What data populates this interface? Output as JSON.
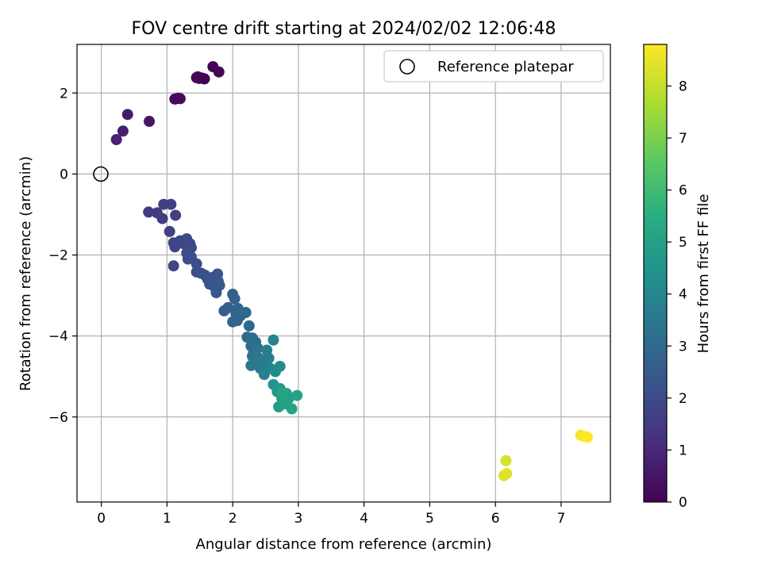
{
  "chart_data": {
    "type": "scatter",
    "title": "FOV centre drift starting at 2024/02/02 12:06:48",
    "xlabel": "Angular distance from reference (arcmin)",
    "ylabel": "Rotation from reference (arcmin)",
    "xlim": [
      -0.37,
      7.75
    ],
    "ylim": [
      -8.1,
      3.2
    ],
    "xticks": [
      0,
      1,
      2,
      3,
      4,
      5,
      6,
      7
    ],
    "yticks": [
      -6,
      -4,
      -2,
      0,
      2
    ],
    "grid": true,
    "legend": {
      "placement": "top-right",
      "entries": [
        "Reference platepar"
      ]
    },
    "reference_point": {
      "x": 0,
      "y": 0,
      "label": "Reference platepar"
    },
    "colorbar": {
      "label": "Hours from first FF file",
      "colormap": "viridis",
      "range": [
        0,
        8.8
      ],
      "ticks": [
        0,
        1,
        2,
        3,
        4,
        5,
        6,
        7,
        8
      ]
    },
    "points": [
      {
        "x": 1.49,
        "y": 2.36,
        "c": 0.05
      },
      {
        "x": 1.53,
        "y": 2.37,
        "c": 0.06
      },
      {
        "x": 1.57,
        "y": 2.35,
        "c": 0.06
      },
      {
        "x": 1.45,
        "y": 2.38,
        "c": 0.05
      },
      {
        "x": 1.7,
        "y": 2.65,
        "c": 0.08
      },
      {
        "x": 1.79,
        "y": 2.52,
        "c": 0.1
      },
      {
        "x": 1.47,
        "y": 2.4,
        "c": 0.07
      },
      {
        "x": 1.12,
        "y": 1.85,
        "c": 0.22
      },
      {
        "x": 1.17,
        "y": 1.87,
        "c": 0.23
      },
      {
        "x": 1.2,
        "y": 1.86,
        "c": 0.24
      },
      {
        "x": 0.73,
        "y": 1.3,
        "c": 0.55
      },
      {
        "x": 0.4,
        "y": 1.47,
        "c": 0.65
      },
      {
        "x": 0.33,
        "y": 1.06,
        "c": 0.75
      },
      {
        "x": 0.23,
        "y": 0.85,
        "c": 0.85
      },
      {
        "x": 0.72,
        "y": -0.94,
        "c": 1.55
      },
      {
        "x": 0.85,
        "y": -0.96,
        "c": 1.6
      },
      {
        "x": 0.93,
        "y": -1.1,
        "c": 1.62
      },
      {
        "x": 0.95,
        "y": -0.75,
        "c": 1.65
      },
      {
        "x": 1.06,
        "y": -0.75,
        "c": 1.67
      },
      {
        "x": 1.13,
        "y": -1.02,
        "c": 1.7
      },
      {
        "x": 1.04,
        "y": -1.42,
        "c": 1.75
      },
      {
        "x": 1.1,
        "y": -1.7,
        "c": 1.8
      },
      {
        "x": 1.12,
        "y": -1.8,
        "c": 1.82
      },
      {
        "x": 1.1,
        "y": -2.27,
        "c": 1.85
      },
      {
        "x": 1.2,
        "y": -1.65,
        "c": 1.9
      },
      {
        "x": 1.25,
        "y": -1.72,
        "c": 1.92
      },
      {
        "x": 1.3,
        "y": -1.6,
        "c": 1.95
      },
      {
        "x": 1.35,
        "y": -1.72,
        "c": 1.98
      },
      {
        "x": 1.37,
        "y": -1.82,
        "c": 2.0
      },
      {
        "x": 1.3,
        "y": -1.95,
        "c": 2.02
      },
      {
        "x": 1.32,
        "y": -2.1,
        "c": 2.05
      },
      {
        "x": 1.37,
        "y": -2.05,
        "c": 2.08
      },
      {
        "x": 1.45,
        "y": -2.22,
        "c": 2.1
      },
      {
        "x": 1.45,
        "y": -2.42,
        "c": 2.12
      },
      {
        "x": 1.52,
        "y": -2.45,
        "c": 2.15
      },
      {
        "x": 1.58,
        "y": -2.5,
        "c": 2.2
      },
      {
        "x": 1.62,
        "y": -2.6,
        "c": 2.25
      },
      {
        "x": 1.65,
        "y": -2.72,
        "c": 2.28
      },
      {
        "x": 1.7,
        "y": -2.55,
        "c": 2.3
      },
      {
        "x": 1.77,
        "y": -2.47,
        "c": 2.32
      },
      {
        "x": 1.78,
        "y": -2.65,
        "c": 2.35
      },
      {
        "x": 1.73,
        "y": -2.8,
        "c": 2.38
      },
      {
        "x": 1.8,
        "y": -2.75,
        "c": 2.4
      },
      {
        "x": 1.75,
        "y": -2.93,
        "c": 2.42
      },
      {
        "x": 1.87,
        "y": -3.38,
        "c": 2.6
      },
      {
        "x": 1.93,
        "y": -3.3,
        "c": 2.65
      },
      {
        "x": 2.0,
        "y": -2.97,
        "c": 2.7
      },
      {
        "x": 2.03,
        "y": -3.08,
        "c": 2.75
      },
      {
        "x": 2.05,
        "y": -3.45,
        "c": 2.8
      },
      {
        "x": 2.0,
        "y": -3.65,
        "c": 2.85
      },
      {
        "x": 2.08,
        "y": -3.32,
        "c": 2.9
      },
      {
        "x": 2.12,
        "y": -3.5,
        "c": 2.95
      },
      {
        "x": 2.07,
        "y": -3.62,
        "c": 2.97
      },
      {
        "x": 2.2,
        "y": -3.42,
        "c": 3.0
      },
      {
        "x": 2.25,
        "y": -3.75,
        "c": 3.05
      },
      {
        "x": 2.22,
        "y": -4.03,
        "c": 3.1
      },
      {
        "x": 2.3,
        "y": -4.05,
        "c": 3.15
      },
      {
        "x": 2.28,
        "y": -4.25,
        "c": 3.2
      },
      {
        "x": 2.35,
        "y": -4.15,
        "c": 3.25
      },
      {
        "x": 2.32,
        "y": -4.4,
        "c": 3.3
      },
      {
        "x": 2.38,
        "y": -4.3,
        "c": 3.35
      },
      {
        "x": 2.4,
        "y": -4.55,
        "c": 3.4
      },
      {
        "x": 2.3,
        "y": -4.5,
        "c": 3.45
      },
      {
        "x": 2.28,
        "y": -4.73,
        "c": 3.5
      },
      {
        "x": 2.37,
        "y": -4.65,
        "c": 3.55
      },
      {
        "x": 2.42,
        "y": -4.8,
        "c": 3.6
      },
      {
        "x": 2.45,
        "y": -4.6,
        "c": 3.65
      },
      {
        "x": 2.5,
        "y": -4.7,
        "c": 3.7
      },
      {
        "x": 2.55,
        "y": -4.55,
        "c": 3.75
      },
      {
        "x": 2.52,
        "y": -4.35,
        "c": 3.8
      },
      {
        "x": 2.48,
        "y": -4.95,
        "c": 3.85
      },
      {
        "x": 2.57,
        "y": -4.8,
        "c": 3.9
      },
      {
        "x": 2.62,
        "y": -4.1,
        "c": 3.95
      },
      {
        "x": 2.65,
        "y": -4.88,
        "c": 4.2
      },
      {
        "x": 2.72,
        "y": -4.75,
        "c": 4.3
      },
      {
        "x": 2.62,
        "y": -5.2,
        "c": 4.6
      },
      {
        "x": 2.68,
        "y": -5.38,
        "c": 4.7
      },
      {
        "x": 2.72,
        "y": -5.3,
        "c": 4.75
      },
      {
        "x": 2.75,
        "y": -5.55,
        "c": 4.8
      },
      {
        "x": 2.7,
        "y": -5.75,
        "c": 4.85
      },
      {
        "x": 2.78,
        "y": -5.68,
        "c": 4.9
      },
      {
        "x": 2.82,
        "y": -5.42,
        "c": 4.95
      },
      {
        "x": 2.85,
        "y": -5.55,
        "c": 5.0
      },
      {
        "x": 2.8,
        "y": -5.62,
        "c": 5.05
      },
      {
        "x": 2.9,
        "y": -5.8,
        "c": 5.1
      },
      {
        "x": 2.98,
        "y": -5.47,
        "c": 5.15
      },
      {
        "x": 2.76,
        "y": -5.4,
        "c": 5.2
      },
      {
        "x": 6.16,
        "y": -7.08,
        "c": 8.3
      },
      {
        "x": 6.13,
        "y": -7.45,
        "c": 8.35
      },
      {
        "x": 6.17,
        "y": -7.4,
        "c": 8.4
      },
      {
        "x": 7.3,
        "y": -6.45,
        "c": 8.7
      },
      {
        "x": 7.35,
        "y": -6.48,
        "c": 8.75
      },
      {
        "x": 7.4,
        "y": -6.5,
        "c": 8.8
      }
    ]
  }
}
